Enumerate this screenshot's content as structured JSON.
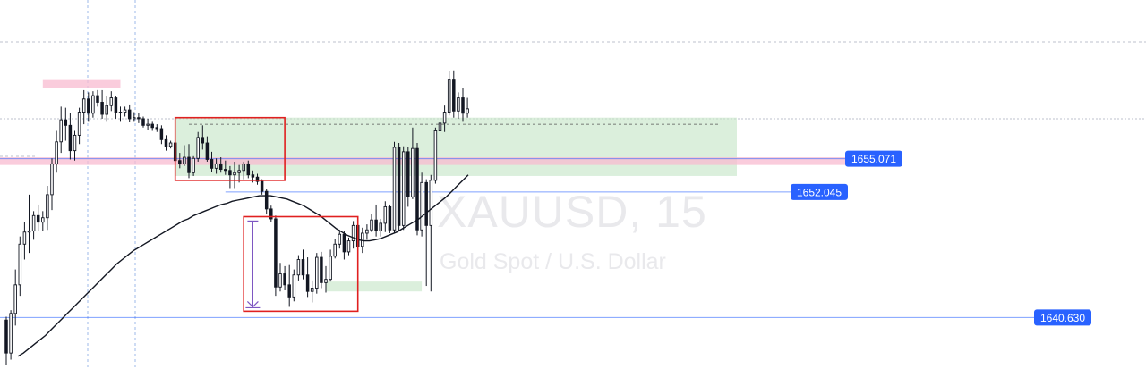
{
  "watermark": {
    "symbol": "XAUUSD, 15",
    "description": "Gold Spot / U.S. Dollar"
  },
  "colors": {
    "candle": "#131722",
    "ma_line": "#131722",
    "label_bg": "#2962ff",
    "level_line": "#2962ff",
    "box_border": "#e02020",
    "green_zone": "#c8e6c9",
    "pink_zone": "#f8bbd0",
    "arrow": "#7e57c2",
    "grid": "#bcc0cc",
    "crosshair": "#9db8e8"
  },
  "chart_data": {
    "type": "candlestick",
    "symbol": "XAUUSD",
    "timeframe": "15",
    "ylim": [
      1636.6,
      1663.0
    ],
    "price_labels": [
      {
        "id": "level-1655",
        "text": "1655.071",
        "value": 1655.071
      },
      {
        "id": "level-1652",
        "text": "1652.045",
        "value": 1652.045
      },
      {
        "id": "level-1640",
        "text": "1640.630",
        "value": 1640.63
      }
    ],
    "candles": [
      [
        1640.4,
        1640.7,
        1636.3,
        1637.4
      ],
      [
        1637.4,
        1641.3,
        1636.8,
        1641.0
      ],
      [
        1641.0,
        1645.0,
        1639.9,
        1643.6
      ],
      [
        1643.6,
        1648.0,
        1642.6,
        1647.3
      ],
      [
        1647.3,
        1649.3,
        1645.9,
        1648.4
      ],
      [
        1648.4,
        1651.8,
        1646.5,
        1648.5
      ],
      [
        1648.5,
        1650.3,
        1647.7,
        1649.9
      ],
      [
        1649.9,
        1650.9,
        1648.5,
        1649.3
      ],
      [
        1649.3,
        1650.3,
        1648.5,
        1649.7
      ],
      [
        1649.7,
        1652.6,
        1648.6,
        1651.8
      ],
      [
        1651.8,
        1655.1,
        1650.4,
        1654.6
      ],
      [
        1654.6,
        1657.6,
        1653.8,
        1656.6
      ],
      [
        1656.6,
        1659.8,
        1655.6,
        1658.6
      ],
      [
        1658.6,
        1659.7,
        1656.7,
        1658.1
      ],
      [
        1658.1,
        1659.2,
        1655.0,
        1655.8
      ],
      [
        1655.8,
        1657.6,
        1654.9,
        1657.2
      ],
      [
        1657.2,
        1659.7,
        1656.4,
        1659.3
      ],
      [
        1659.3,
        1661.3,
        1658.2,
        1660.5
      ],
      [
        1660.5,
        1661.1,
        1658.5,
        1659.2
      ],
      [
        1659.2,
        1661.2,
        1658.8,
        1660.8
      ],
      [
        1660.8,
        1661.3,
        1659.8,
        1660.2
      ],
      [
        1660.2,
        1661.3,
        1658.7,
        1659.1
      ],
      [
        1659.1,
        1660.8,
        1658.5,
        1659.9
      ],
      [
        1659.9,
        1661.2,
        1659.4,
        1660.6
      ],
      [
        1660.6,
        1660.8,
        1658.7,
        1659.3
      ],
      [
        1659.3,
        1659.8,
        1658.5,
        1659.3
      ],
      [
        1659.3,
        1659.8,
        1658.9,
        1659.5
      ],
      [
        1659.5,
        1660.0,
        1658.4,
        1658.7
      ],
      [
        1658.7,
        1659.3,
        1658.5,
        1658.8
      ],
      [
        1658.8,
        1659.2,
        1658.3,
        1658.7
      ],
      [
        1658.7,
        1658.9,
        1657.9,
        1658.1
      ],
      [
        1658.1,
        1658.7,
        1657.7,
        1658.2
      ],
      [
        1658.2,
        1658.5,
        1657.6,
        1657.9
      ],
      [
        1657.9,
        1658.2,
        1657.5,
        1657.8
      ],
      [
        1657.8,
        1658.1,
        1656.4,
        1656.8
      ],
      [
        1656.8,
        1657.2,
        1655.8,
        1656.2
      ],
      [
        1656.2,
        1656.7,
        1656.0,
        1656.5
      ],
      [
        1656.5,
        1657.2,
        1654.5,
        1654.9
      ],
      [
        1654.9,
        1655.6,
        1654.2,
        1654.6
      ],
      [
        1654.6,
        1656.3,
        1654.4,
        1655.2
      ],
      [
        1655.2,
        1656.4,
        1653.3,
        1653.8
      ],
      [
        1653.8,
        1655.3,
        1653.5,
        1655.1
      ],
      [
        1655.1,
        1657.5,
        1654.8,
        1657.0
      ],
      [
        1657.0,
        1658.1,
        1655.9,
        1656.5
      ],
      [
        1656.5,
        1657.1,
        1654.8,
        1655.0
      ],
      [
        1655.0,
        1655.7,
        1653.9,
        1654.2
      ],
      [
        1654.2,
        1655.1,
        1653.7,
        1654.6
      ],
      [
        1654.6,
        1655.2,
        1653.8,
        1654.1
      ],
      [
        1654.1,
        1654.9,
        1653.6,
        1654.0
      ],
      [
        1654.0,
        1654.4,
        1652.4,
        1653.6
      ],
      [
        1653.6,
        1654.8,
        1652.4,
        1653.8
      ],
      [
        1653.8,
        1654.5,
        1652.9,
        1654.0
      ],
      [
        1654.0,
        1654.8,
        1653.2,
        1654.6
      ],
      [
        1654.6,
        1654.9,
        1653.3,
        1653.6
      ],
      [
        1653.6,
        1654.0,
        1652.9,
        1653.4
      ],
      [
        1653.4,
        1653.7,
        1652.7,
        1653.0
      ],
      [
        1653.0,
        1653.2,
        1651.8,
        1652.1
      ],
      [
        1652.1,
        1652.3,
        1650.0,
        1650.5
      ],
      [
        1650.5,
        1650.8,
        1649.3,
        1649.6
      ],
      [
        1649.6,
        1649.9,
        1642.6,
        1643.4
      ],
      [
        1643.4,
        1645.6,
        1643.0,
        1644.6
      ],
      [
        1644.6,
        1645.3,
        1643.1,
        1643.6
      ],
      [
        1643.6,
        1645.4,
        1641.6,
        1642.5
      ],
      [
        1642.5,
        1645.0,
        1642.1,
        1644.5
      ],
      [
        1644.5,
        1646.3,
        1644.0,
        1645.9
      ],
      [
        1645.9,
        1646.8,
        1644.1,
        1644.5
      ],
      [
        1644.5,
        1646.1,
        1642.5,
        1643.0
      ],
      [
        1643.0,
        1644.0,
        1642.0,
        1643.3
      ],
      [
        1643.3,
        1646.5,
        1642.8,
        1646.1
      ],
      [
        1646.1,
        1646.6,
        1643.3,
        1643.8
      ],
      [
        1643.8,
        1645.3,
        1642.9,
        1644.1
      ],
      [
        1644.1,
        1646.8,
        1643.9,
        1646.2
      ],
      [
        1646.2,
        1647.8,
        1646.0,
        1647.3
      ],
      [
        1647.3,
        1648.6,
        1646.9,
        1648.2
      ],
      [
        1648.2,
        1648.5,
        1645.9,
        1646.6
      ],
      [
        1646.6,
        1647.9,
        1646.3,
        1647.6
      ],
      [
        1647.6,
        1649.4,
        1646.9,
        1649.0
      ],
      [
        1649.0,
        1649.5,
        1646.7,
        1647.1
      ],
      [
        1647.1,
        1648.8,
        1646.5,
        1648.3
      ],
      [
        1648.3,
        1649.1,
        1647.7,
        1648.6
      ],
      [
        1648.6,
        1650.0,
        1648.4,
        1649.5
      ],
      [
        1649.5,
        1650.9,
        1648.0,
        1648.5
      ],
      [
        1648.5,
        1649.6,
        1648.0,
        1649.2
      ],
      [
        1649.2,
        1651.2,
        1648.4,
        1650.7
      ],
      [
        1650.7,
        1650.9,
        1648.3,
        1648.6
      ],
      [
        1648.6,
        1656.6,
        1648.3,
        1656.1
      ],
      [
        1656.1,
        1656.5,
        1648.5,
        1649.0
      ],
      [
        1649.0,
        1656.2,
        1648.6,
        1655.7
      ],
      [
        1655.7,
        1656.1,
        1650.7,
        1651.6
      ],
      [
        1651.6,
        1657.9,
        1651.4,
        1656.0
      ],
      [
        1656.0,
        1656.5,
        1648.1,
        1648.6
      ],
      [
        1648.6,
        1653.8,
        1648.0,
        1652.9
      ],
      [
        1652.9,
        1653.2,
        1643.5,
        1649.0
      ],
      [
        1649.0,
        1653.6,
        1643.0,
        1653.1
      ],
      [
        1653.1,
        1657.9,
        1652.8,
        1657.6
      ],
      [
        1657.6,
        1659.3,
        1657.3,
        1658.3
      ],
      [
        1658.3,
        1659.9,
        1657.5,
        1659.3
      ],
      [
        1659.3,
        1663.0,
        1659.0,
        1662.3
      ],
      [
        1662.3,
        1663.1,
        1658.8,
        1659.4
      ],
      [
        1659.4,
        1661.1,
        1658.7,
        1660.6
      ],
      [
        1660.6,
        1661.5,
        1658.5,
        1659.2
      ],
      [
        1659.2,
        1660.6,
        1658.8,
        1659.6
      ]
    ],
    "moving_average": [
      1637.1,
      1637.4,
      1637.8,
      1638.2,
      1638.6,
      1639.0,
      1639.5,
      1640.0,
      1640.5,
      1641.0,
      1641.5,
      1642.0,
      1642.5,
      1643.0,
      1643.5,
      1644.0,
      1644.5,
      1645.0,
      1645.5,
      1645.9,
      1646.3,
      1646.7,
      1647.0,
      1647.3,
      1647.6,
      1647.9,
      1648.2,
      1648.5,
      1648.8,
      1649.1,
      1649.4,
      1649.6,
      1649.9,
      1650.1,
      1650.3,
      1650.5,
      1650.7,
      1650.9,
      1651.0,
      1651.2,
      1651.3,
      1651.4,
      1651.5,
      1651.6,
      1651.7,
      1651.7,
      1651.7,
      1651.6,
      1651.5,
      1651.4,
      1651.2,
      1651.0,
      1650.8,
      1650.5,
      1650.2,
      1649.9,
      1649.5,
      1649.1,
      1648.7,
      1648.4,
      1648.1,
      1647.9,
      1647.7,
      1647.6,
      1647.6,
      1647.7,
      1647.8,
      1648.0,
      1648.2,
      1648.4,
      1648.7,
      1649.0,
      1649.3,
      1649.6,
      1650.0,
      1650.4,
      1650.8,
      1651.2,
      1651.6,
      1652.1,
      1652.6,
      1653.1,
      1653.6
    ],
    "zones": [
      {
        "id": "supply-zone",
        "kind": "green",
        "x_from": 37,
        "x_to": 160,
        "y_from": 1653.5,
        "y_to": 1658.8
      },
      {
        "id": "demand-zone",
        "kind": "green",
        "x_from": 70,
        "x_to": 91,
        "y_from": 1643.0,
        "y_to": 1643.9
      },
      {
        "id": "top-zone",
        "kind": "pink",
        "x_from": 8,
        "x_to": 25,
        "y_from": 1661.5,
        "y_to": 1662.3
      },
      {
        "id": "level-zone",
        "kind": "pink",
        "x_from": -2,
        "x_to": 185,
        "y_from": 1654.5,
        "y_to": 1655.2
      }
    ],
    "boxes": [
      {
        "id": "consolidation-box",
        "x_from": 37,
        "x_to": 61,
        "y_from": 1653.1,
        "y_to": 1658.8
      },
      {
        "id": "drop-box",
        "x_from": 52,
        "x_to": 77,
        "y_from": 1641.2,
        "y_to": 1649.8
      }
    ],
    "arrow": {
      "x": 54,
      "y_from": 1649.4,
      "y_to": 1641.6
    }
  }
}
